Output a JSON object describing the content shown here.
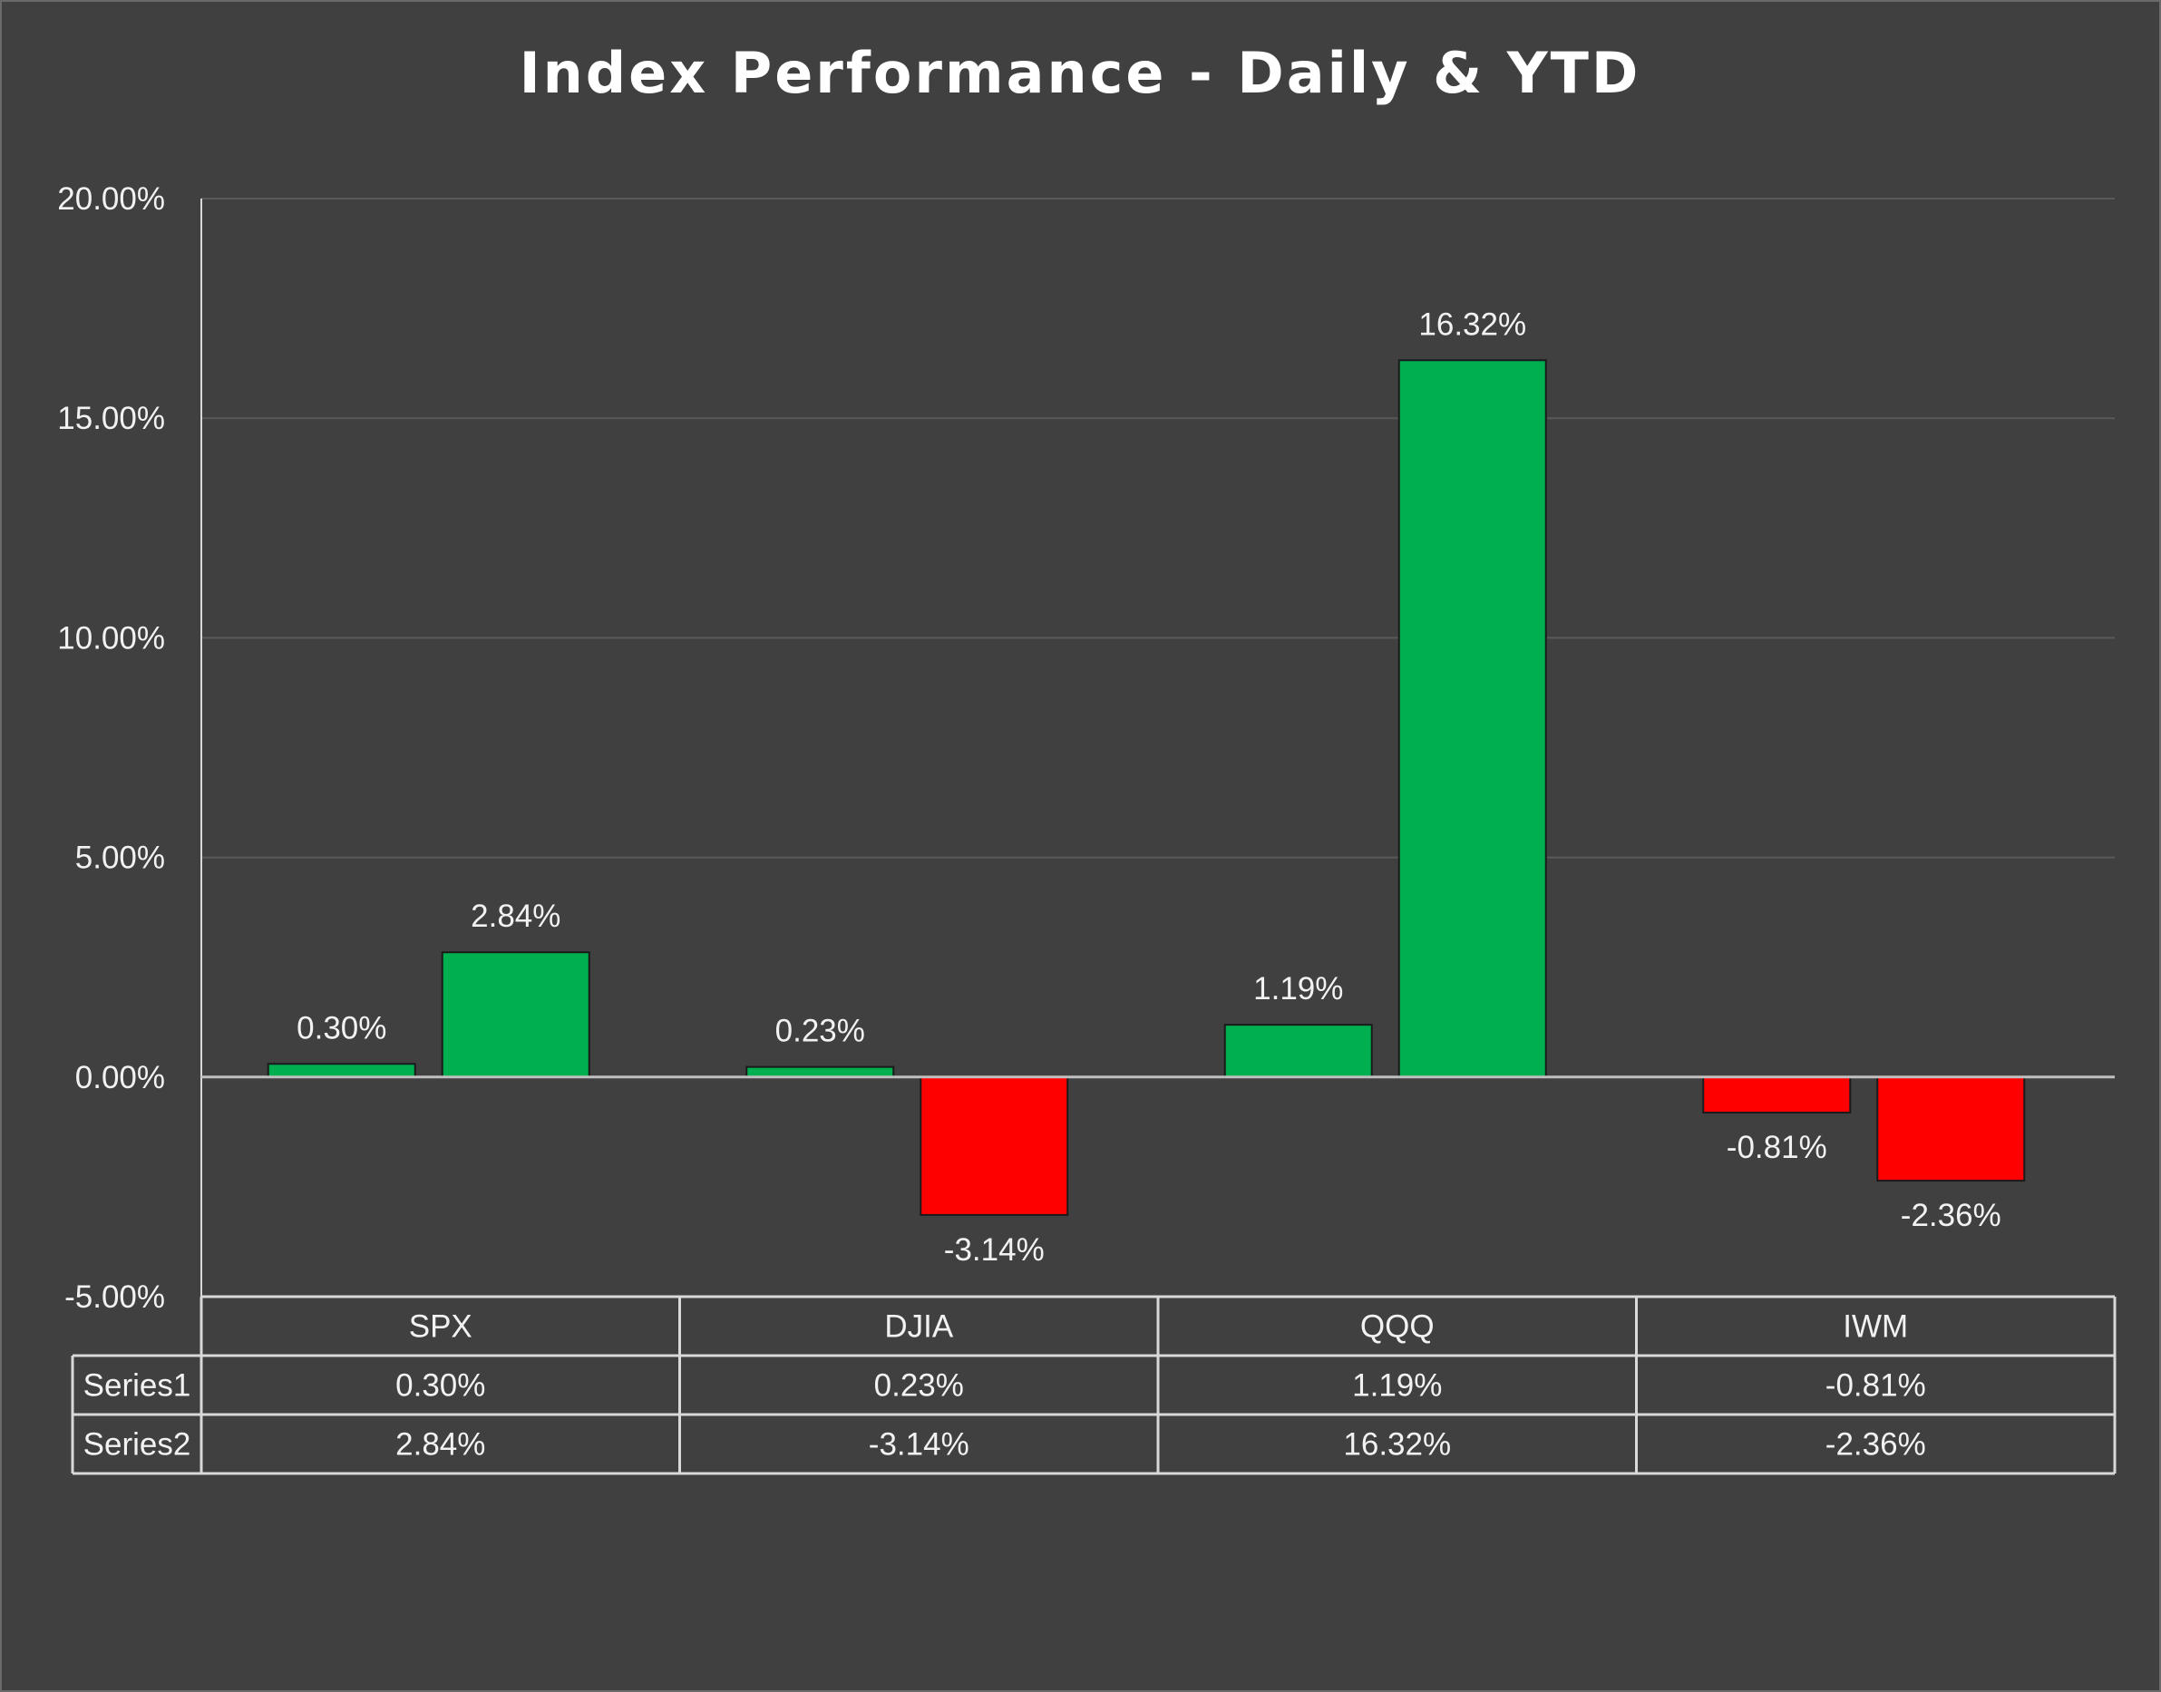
{
  "chart_data": {
    "type": "bar",
    "title": "Index Performance - Daily & YTD",
    "categories": [
      "SPX",
      "DJIA",
      "QQQ",
      "IWM"
    ],
    "series": [
      {
        "name": "Series1",
        "values": [
          0.3,
          0.23,
          1.19,
          -0.81
        ],
        "labels": [
          "0.30%",
          "0.23%",
          "1.19%",
          "-0.81%"
        ]
      },
      {
        "name": "Series2",
        "values": [
          2.84,
          -3.14,
          16.32,
          -2.36
        ],
        "labels": [
          "2.84%",
          "-3.14%",
          "16.32%",
          "-2.36%"
        ]
      }
    ],
    "ylim": [
      -5,
      20
    ],
    "y_ticks": [
      20,
      15,
      10,
      5,
      0,
      -5
    ],
    "y_tick_labels": [
      "20.00%",
      "15.00%",
      "10.00%",
      "5.00%",
      "0.00%",
      "-5.00%"
    ],
    "xlabel": "",
    "ylabel": "",
    "grid": true,
    "legend": "data table below chart",
    "colors": {
      "background": "#404040",
      "positive": "#00b050",
      "negative": "#ff0000",
      "gridline": "#595959",
      "zero_line": "#bfbfbf",
      "table_border": "#d9d9d9",
      "text": "#f2f2f2"
    }
  }
}
